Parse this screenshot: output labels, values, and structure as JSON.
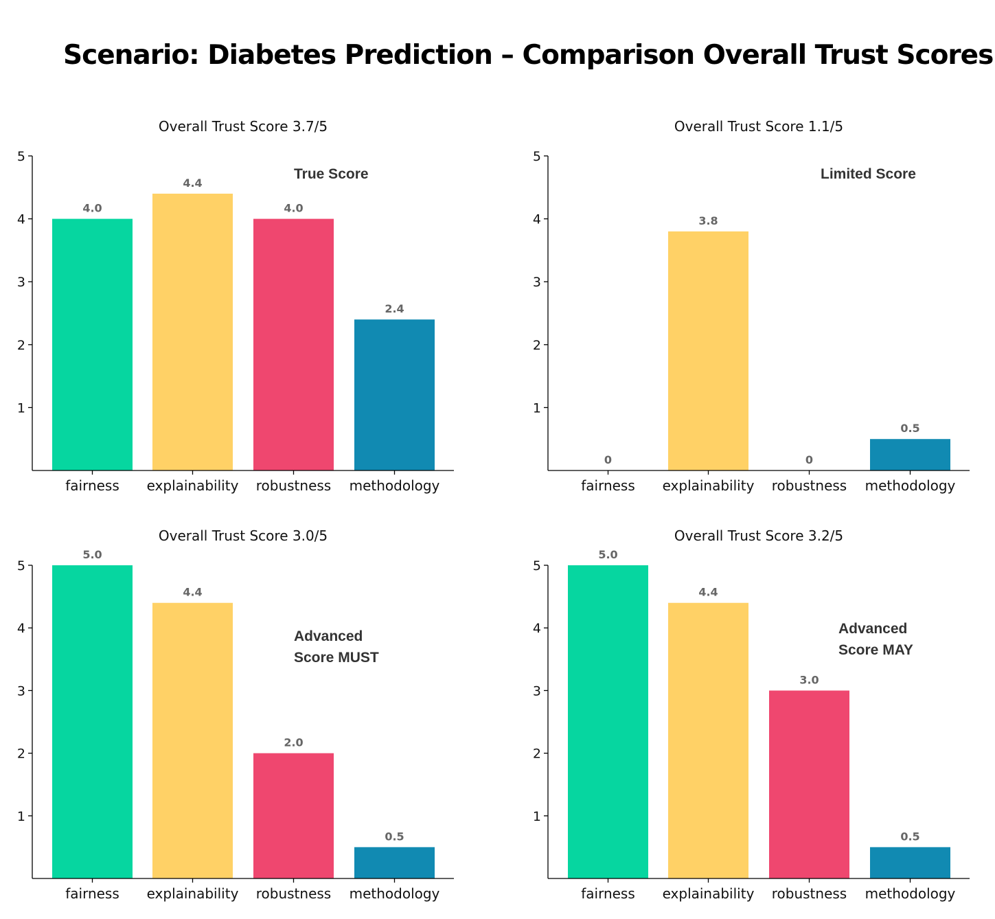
{
  "title": "Scenario: Diabetes Prediction – Comparison Overall Trust Scores",
  "colors": {
    "fairness": "#06d6a0",
    "explainability": "#ffd166",
    "robustness": "#ef476f",
    "methodology": "#118ab2"
  },
  "chart_data": [
    {
      "type": "bar",
      "title": "Overall Trust Score 3.7/5",
      "annotation": [
        "True Score"
      ],
      "categories": [
        "fairness",
        "explainability",
        "robustness",
        "methodology"
      ],
      "values": [
        4.0,
        4.4,
        4.0,
        2.4
      ],
      "value_labels": [
        "4.0",
        "4.4",
        "4.0",
        "2.4"
      ],
      "yticks": [
        "1",
        "2",
        "3",
        "4",
        "5"
      ],
      "ylim": [
        0,
        5
      ],
      "grid": false
    },
    {
      "type": "bar",
      "title": "Overall Trust Score 1.1/5",
      "annotation": [
        "Limited Score"
      ],
      "categories": [
        "fairness",
        "explainability",
        "robustness",
        "methodology"
      ],
      "values": [
        0,
        3.8,
        0,
        0.5
      ],
      "value_labels": [
        "0",
        "3.8",
        "0",
        "0.5"
      ],
      "yticks": [
        "1",
        "2",
        "3",
        "4",
        "5"
      ],
      "ylim": [
        0,
        5
      ],
      "grid": false
    },
    {
      "type": "bar",
      "title": "Overall Trust Score 3.0/5",
      "annotation": [
        "Advanced",
        "Score MUST"
      ],
      "categories": [
        "fairness",
        "explainability",
        "robustness",
        "methodology"
      ],
      "values": [
        5.0,
        4.4,
        2.0,
        0.5
      ],
      "value_labels": [
        "5.0",
        "4.4",
        "2.0",
        "0.5"
      ],
      "yticks": [
        "1",
        "2",
        "3",
        "4",
        "5"
      ],
      "ylim": [
        0,
        5
      ],
      "grid": false
    },
    {
      "type": "bar",
      "title": "Overall Trust Score 3.2/5",
      "annotation": [
        "Advanced",
        "Score MAY"
      ],
      "categories": [
        "fairness",
        "explainability",
        "robustness",
        "methodology"
      ],
      "values": [
        5.0,
        4.4,
        3.0,
        0.5
      ],
      "value_labels": [
        "5.0",
        "4.4",
        "3.0",
        "0.5"
      ],
      "yticks": [
        "1",
        "2",
        "3",
        "4",
        "5"
      ],
      "ylim": [
        0,
        5
      ],
      "grid": false
    }
  ]
}
